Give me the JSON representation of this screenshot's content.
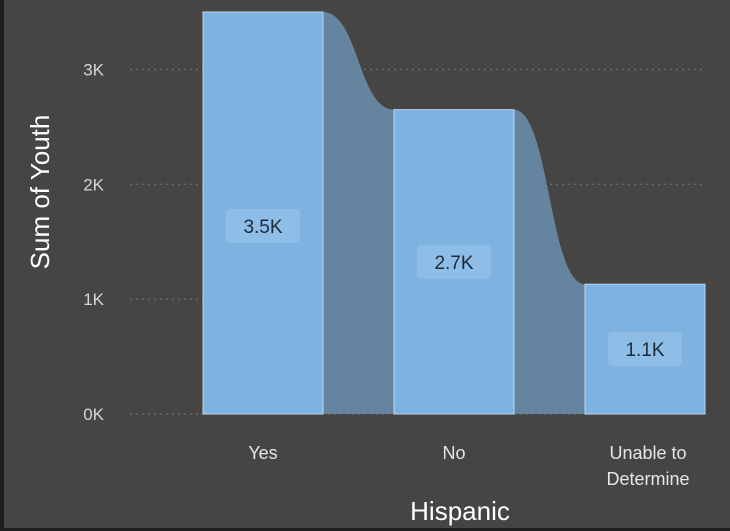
{
  "colors": {
    "background": "#474544",
    "bar": "#7eb2e1",
    "ribbon": "#6584a0",
    "label_box": "#8ebde8",
    "gridline": "#7a7877"
  },
  "chart_data": {
    "type": "bar",
    "subtype": "ribbon",
    "xlabel": "Hispanic",
    "ylabel": "Sum of Youth",
    "categories": [
      {
        "lines": [
          "Yes"
        ]
      },
      {
        "lines": [
          "No"
        ]
      },
      {
        "lines": [
          "Unable to",
          "Determine"
        ]
      }
    ],
    "values": [
      3500,
      2650,
      1130
    ],
    "data_labels": [
      "3.5K",
      "2.7K",
      "1.1K"
    ],
    "y_ticks": [
      {
        "value": 0,
        "label": "0K"
      },
      {
        "value": 1000,
        "label": "1K"
      },
      {
        "value": 2000,
        "label": "2K"
      },
      {
        "value": 3000,
        "label": "3K"
      }
    ],
    "ylim": [
      0,
      3500
    ],
    "grid": true
  }
}
